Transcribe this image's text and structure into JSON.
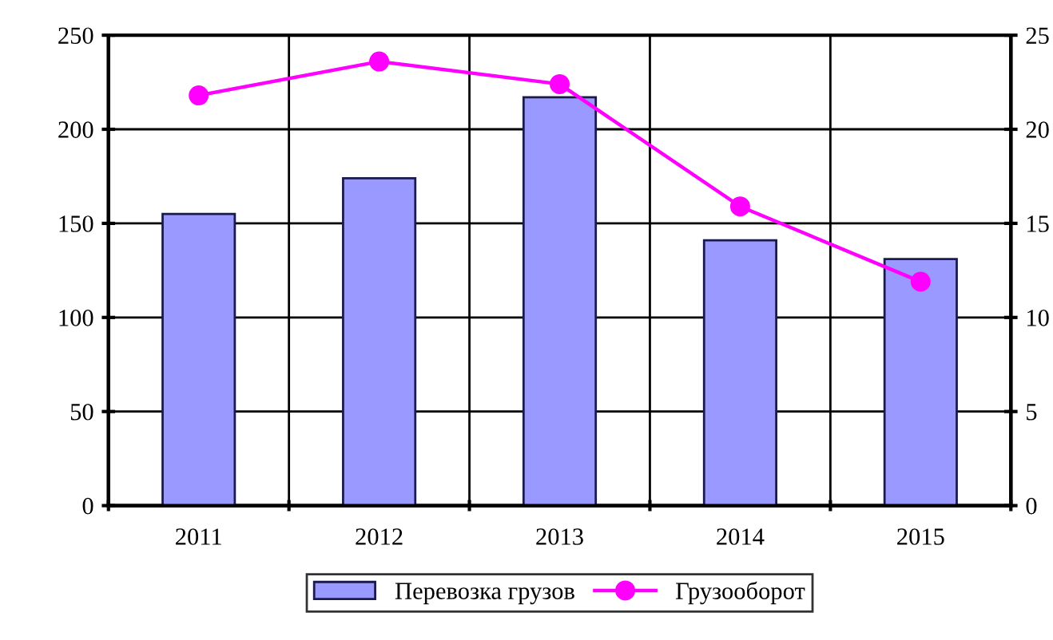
{
  "chart_data": {
    "type": "bar",
    "categories": [
      "2011",
      "2012",
      "2013",
      "2014",
      "2015"
    ],
    "series": [
      {
        "name": "Перевозка грузов",
        "color": "#9999ff",
        "values": [
          155,
          174,
          217,
          141,
          131
        ]
      },
      {
        "name": "Грузооборот",
        "type": "line",
        "axis": "y2",
        "color": "#ff00ff",
        "marker": "circle",
        "values": [
          21.8,
          23.6,
          22.4,
          15.9,
          11.9
        ]
      }
    ],
    "ylim": [
      0,
      250
    ],
    "yticks": [
      0,
      50,
      100,
      150,
      200,
      250
    ],
    "y2lim": [
      0,
      25
    ],
    "y2ticks": [
      0,
      5,
      10,
      15,
      20,
      25
    ],
    "grid": true,
    "legend": "bottom"
  }
}
